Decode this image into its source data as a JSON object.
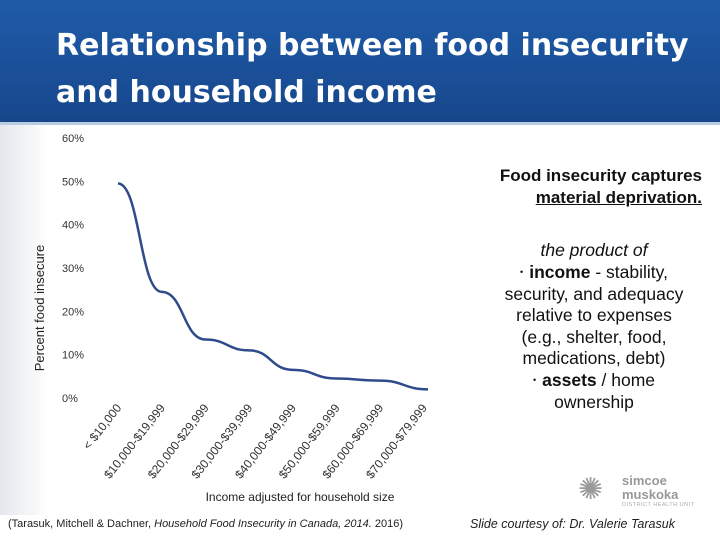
{
  "slide": {
    "title_line1": "Relationship between food insecurity",
    "title_line2": "and household income",
    "right_heading_line1": "Food insecurity captures",
    "right_heading_line2": "material deprivation.",
    "right_intro": "the product of",
    "bullet1_bold": "income",
    "bullet1_rest_line1": " - stability,",
    "bullet1_rest_line2": "security, and adequacy",
    "bullet1_rest_line3": "relative to expenses",
    "bullet1_rest_line4": "(e.g., shelter, food,",
    "bullet1_rest_line5": "medications, debt)",
    "bullet2_bold": "assets",
    "bullet2_rest_line1": " / home",
    "bullet2_rest_line2": "ownership",
    "bullet_glyph": "•",
    "citation_prefix": "(Tarasuk, Mitchell & Dachner, ",
    "citation_italic": "Household Food Insecurity in Canada, 2014.",
    "citation_suffix": " 2016)",
    "courtesy": "Slide courtesy of: Dr. Valerie Tarasuk",
    "logo_line1": "simcoe",
    "logo_line2": "muskoka",
    "logo_line3": "DISTRICT HEALTH UNIT",
    "logo_icon": "stylized-people-sun-icon",
    "header_color": "#1a4f98",
    "line_color": "#2f4b8c"
  },
  "chart_data": {
    "type": "line",
    "title": "",
    "xlabel": "Income adjusted for household size",
    "ylabel": "Percent food insecure",
    "categories": [
      "< $10,000",
      "$10,000-$19,999",
      "$20,000-$29,999",
      "$30,000-$39,999",
      "$40,000-$49,999",
      "$50,000-$59,999",
      "$60,000-$69,999",
      "$70,000-$79,999"
    ],
    "x": [
      5,
      15,
      25,
      35,
      45,
      55,
      65,
      75
    ],
    "y_ticks": [
      "0%",
      "10%",
      "20%",
      "30%",
      "40%",
      "50%",
      "60%"
    ],
    "y_tick_values": [
      0,
      10,
      20,
      30,
      40,
      50,
      60
    ],
    "ylim": [
      0,
      60
    ],
    "xlim": [
      5,
      76
    ],
    "series": [
      {
        "values": [
          49.5,
          24.5,
          13.5,
          11.0,
          6.5,
          4.5,
          4.0,
          2.0
        ],
        "x": [
          5,
          15,
          25,
          35,
          45,
          55,
          65,
          76
        ]
      }
    ],
    "grid": false,
    "legend": "none"
  }
}
